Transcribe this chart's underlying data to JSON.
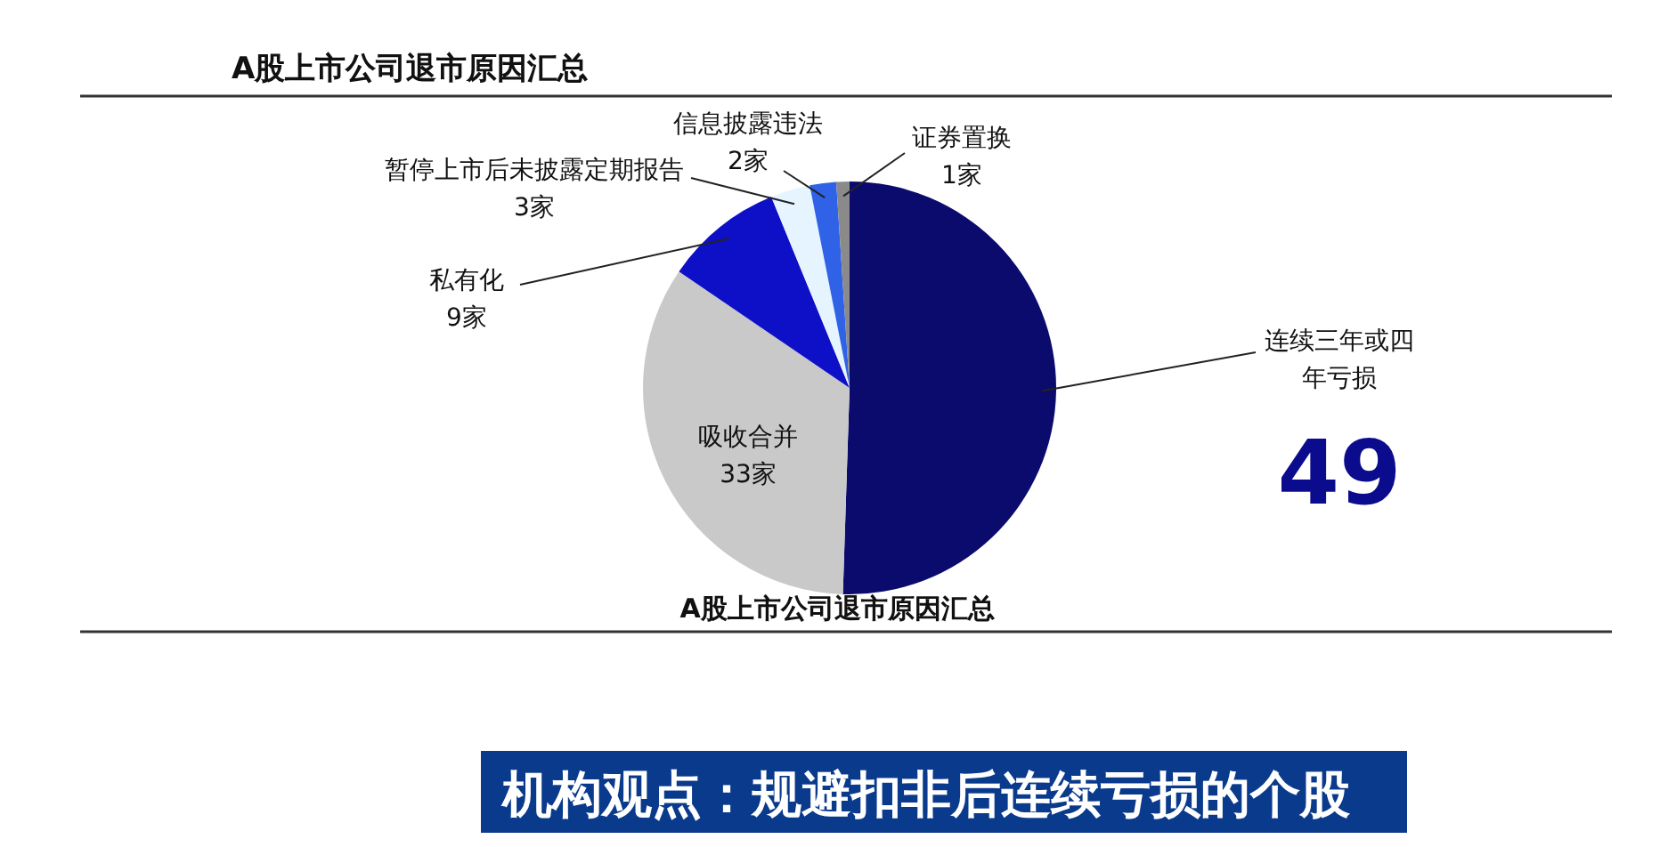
{
  "chart_data": {
    "type": "pie",
    "title": "A股上市公司退市原因汇总",
    "categories": [
      "连续三年或四年亏损",
      "吸收合并",
      "私有化",
      "暂停上市后未披露定期报告",
      "信息披露违法",
      "证券置换"
    ],
    "values": [
      49,
      33,
      9,
      3,
      2,
      1
    ],
    "value_labels": [
      "49",
      "33家",
      "9家",
      "3家",
      "2家",
      "1家"
    ],
    "colors": [
      "#0b0b6e",
      "#c9c9c9",
      "#0e10c8",
      "#e6f4ff",
      "#2f62e6",
      "#8a8a8a"
    ],
    "annotations": [
      "A股上市公司退市原因汇总",
      "机构观点：规避扣非后连续亏损的个股"
    ]
  }
}
